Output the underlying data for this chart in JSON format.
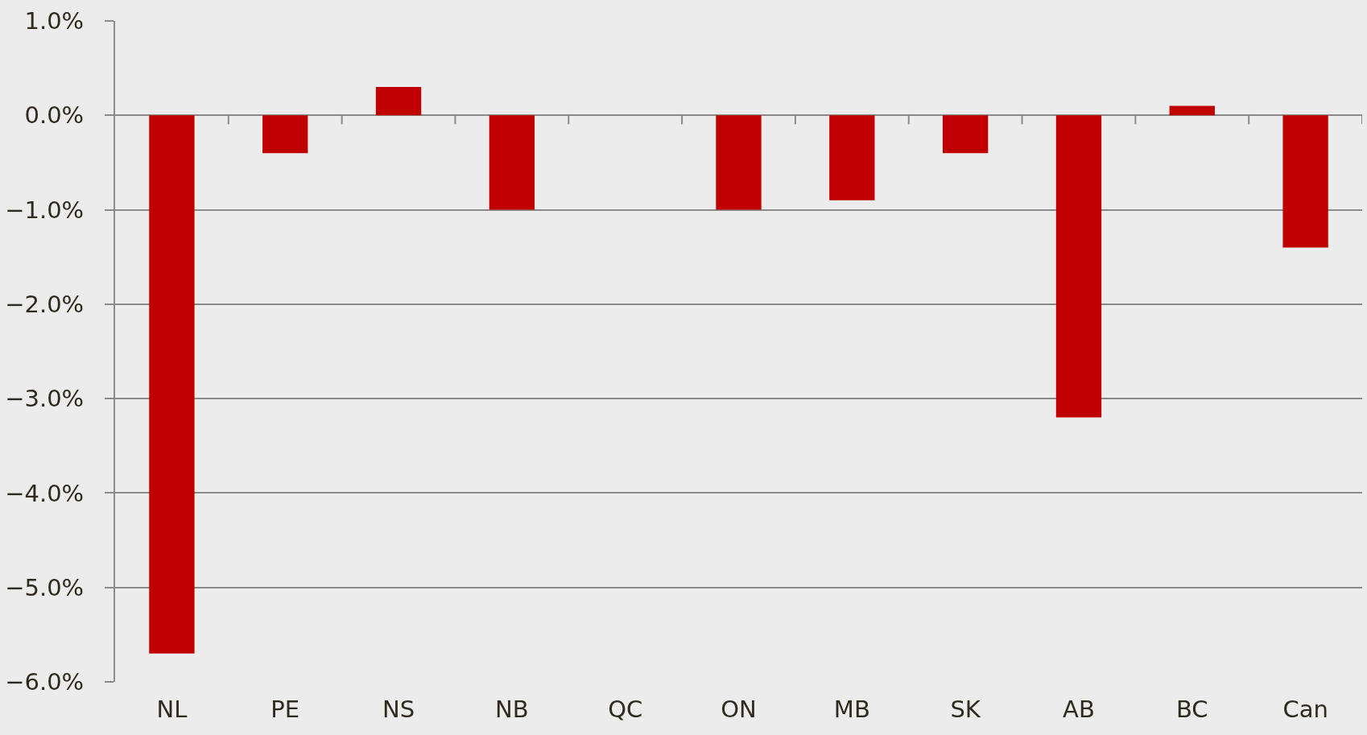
{
  "chart_data": {
    "type": "bar",
    "categories": [
      "NL",
      "PE",
      "NS",
      "NB",
      "QC",
      "ON",
      "MB",
      "SK",
      "AB",
      "BC",
      "Can"
    ],
    "values": [
      -5.7,
      -0.4,
      0.3,
      -1.0,
      null,
      -1.0,
      -0.9,
      -0.4,
      -3.2,
      0.1,
      -1.4
    ],
    "color": "#c00000",
    "ylim": [
      -6,
      1
    ],
    "yticks": [
      {
        "value": -6,
        "label": "−6.0%"
      },
      {
        "value": -5,
        "label": "−5.0%"
      },
      {
        "value": -4,
        "label": "−4.0%"
      },
      {
        "value": -3,
        "label": "−3.0%"
      },
      {
        "value": -2,
        "label": "−2.0%"
      },
      {
        "value": -1,
        "label": "−1.0%"
      },
      {
        "value": 0,
        "label": "0.0%"
      },
      {
        "value": 1,
        "label": "1.0%"
      }
    ],
    "grid": "y"
  }
}
